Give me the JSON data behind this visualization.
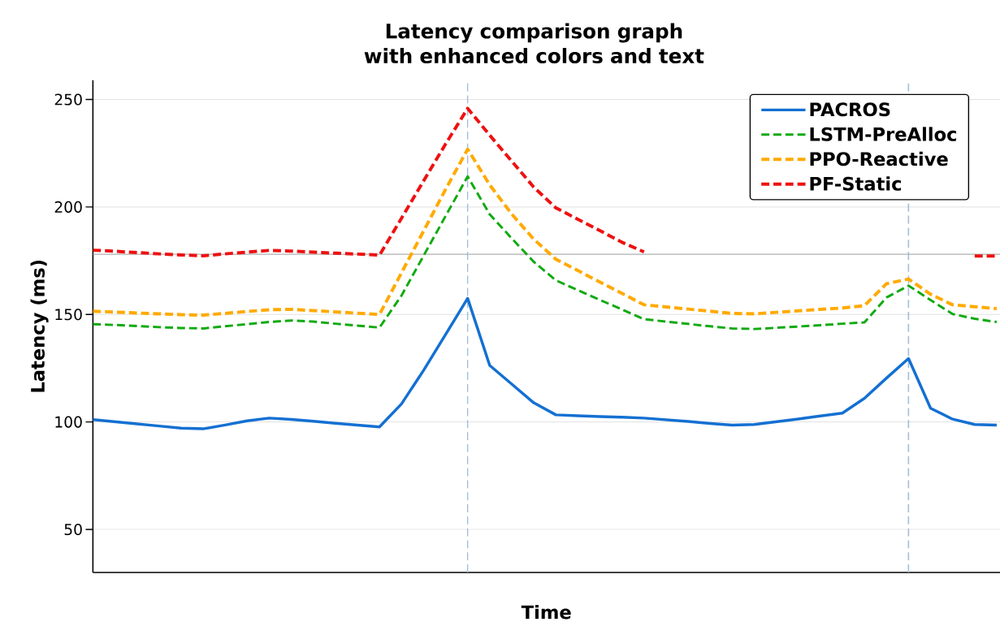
{
  "chart_data": {
    "type": "line",
    "title": "Latency comparison graph with enhanced colors and text",
    "xlabel": "Time",
    "ylabel": "Latency (ms)",
    "categories": [
      null,
      null,
      null,
      null,
      null,
      null,
      null,
      null,
      null,
      null,
      null,
      null,
      null,
      null,
      null,
      null,
      null,
      null,
      null,
      null,
      null,
      null,
      null,
      null,
      null,
      null,
      null,
      null,
      null,
      null,
      null,
      null,
      null,
      null,
      null,
      null,
      null,
      null,
      null,
      null,
      null,
      null
    ],
    "ylim": [
      30,
      259
    ],
    "yticks": [
      50,
      100,
      150,
      200,
      250
    ],
    "tick_labels": "y",
    "grid": "y",
    "legend": "top right",
    "marker": "none",
    "ref_lines": [
      {
        "axis": "y",
        "value": 178,
        "color": "#b0b0b0",
        "line_style": "solid"
      }
    ],
    "series": [
      {
        "name": "PACROS",
        "color": "#1470d2",
        "line_style": "solid",
        "values": [
          101.1,
          100.1,
          99.1,
          98.1,
          97.1,
          96.8,
          98.6,
          100.5,
          101.8,
          101.2,
          100.3,
          99.4,
          98.5,
          97.7,
          108.4,
          124.0,
          140.7,
          157.5,
          126.3,
          117.6,
          108.9,
          103.3,
          102.9,
          102.5,
          102.2,
          101.8,
          101.0,
          100.2,
          99.3,
          98.5,
          98.8,
          100.1,
          101.4,
          102.8,
          104.1,
          111.0,
          120.4,
          129.5,
          106.4,
          101.3,
          98.8,
          98.5
        ]
      },
      {
        "name": "LSTM-PreAlloc",
        "color": "#12aa12",
        "line_style": "dashed",
        "values": [
          145.5,
          145.1,
          144.6,
          144.1,
          143.7,
          143.5,
          144.5,
          145.5,
          146.5,
          147.2,
          146.7,
          145.7,
          144.8,
          143.9,
          158.8,
          177.3,
          195.8,
          214.2,
          196.6,
          185.4,
          174.5,
          165.9,
          161.3,
          156.8,
          152.3,
          147.8,
          146.7,
          145.6,
          144.5,
          143.5,
          143.2,
          143.8,
          144.4,
          145.0,
          145.7,
          146.3,
          157.9,
          163.4,
          156.7,
          150.2,
          148.0,
          146.5
        ]
      },
      {
        "name": "PPO-Reactive",
        "color": "#ffaa00",
        "line_style": "dashed",
        "values": [
          151.5,
          151.1,
          150.7,
          150.3,
          149.9,
          149.7,
          150.5,
          151.4,
          152.2,
          152.4,
          151.8,
          151.2,
          150.6,
          150.0,
          169.4,
          188.8,
          208.2,
          226.9,
          210.3,
          196.7,
          185.0,
          175.7,
          170.4,
          165.1,
          159.8,
          154.5,
          153.5,
          152.5,
          151.5,
          150.5,
          150.3,
          151.0,
          151.7,
          152.4,
          153.0,
          154.1,
          164.3,
          166.5,
          159.4,
          154.5,
          153.6,
          152.7
        ]
      },
      {
        "name": "PF-Static",
        "color": "#ee1111",
        "line_style": "dashed",
        "values": [
          179.9,
          179.4,
          178.8,
          178.2,
          177.7,
          177.3,
          178.2,
          179.0,
          179.8,
          179.5,
          179.0,
          178.5,
          178.1,
          177.6,
          194.8,
          212.1,
          229.3,
          245.9,
          233.4,
          221.3,
          209.2,
          199.6,
          194.3,
          189.0,
          183.6,
          179.1,
          null,
          null,
          null,
          null,
          null,
          null,
          null,
          null,
          null,
          null,
          null,
          null,
          null,
          null,
          177.2,
          177.2
        ]
      }
    ]
  }
}
